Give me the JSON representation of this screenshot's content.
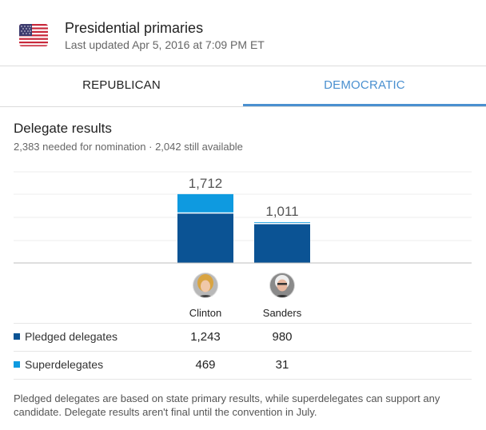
{
  "header": {
    "title": "Presidential primaries",
    "last_updated": "Last updated Apr 5, 2016 at 7:09 PM ET",
    "flag_icon": "us-flag-icon"
  },
  "tabs": [
    {
      "label": "REPUBLICAN",
      "selected": false
    },
    {
      "label": "DEMOCRATIC",
      "selected": true
    }
  ],
  "section": {
    "title": "Delegate results",
    "subtitle": "2,383 needed for nomination · 2,042 still available"
  },
  "colors": {
    "pledged": "#0b5394",
    "superdelegates": "#0e9ae0",
    "tab_accent": "#4a90d0"
  },
  "chart_data": {
    "type": "bar",
    "stacked": true,
    "categories": [
      "Clinton",
      "Sanders"
    ],
    "series": [
      {
        "name": "Pledged delegates",
        "values": [
          1243,
          980
        ]
      },
      {
        "name": "Superdelegates",
        "values": [
          469,
          31
        ]
      }
    ],
    "totals": [
      "1,712",
      "1,011"
    ],
    "ylim": [
      0,
      2000
    ],
    "grid": true
  },
  "candidates": [
    {
      "name": "Clinton",
      "avatar_icon": "clinton-avatar-icon"
    },
    {
      "name": "Sanders",
      "avatar_icon": "sanders-avatar-icon"
    }
  ],
  "table": {
    "rows": [
      {
        "label": "Pledged delegates",
        "values": [
          "1,243",
          "980"
        ]
      },
      {
        "label": "Superdelegates",
        "values": [
          "469",
          "31"
        ]
      }
    ]
  },
  "footnote": "Pledged delegates are based on state primary results, while superdelegates can support any candidate. Delegate results aren't final until the convention in July."
}
